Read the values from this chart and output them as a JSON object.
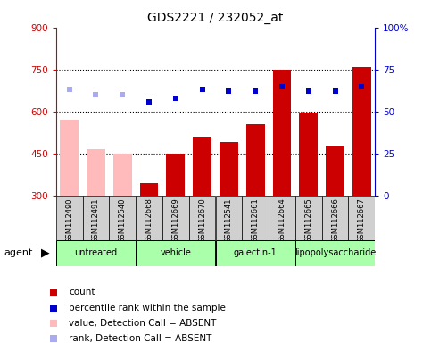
{
  "title": "GDS2221 / 232052_at",
  "samples": [
    "GSM112490",
    "GSM112491",
    "GSM112540",
    "GSM112668",
    "GSM112669",
    "GSM112670",
    "GSM112541",
    "GSM112661",
    "GSM112664",
    "GSM112665",
    "GSM112666",
    "GSM112667"
  ],
  "bar_values": [
    570,
    465,
    450,
    345,
    450,
    510,
    490,
    555,
    750,
    595,
    475,
    760
  ],
  "bar_absent": [
    true,
    true,
    true,
    false,
    false,
    false,
    false,
    false,
    false,
    false,
    false,
    false
  ],
  "rank_values": [
    63,
    60,
    60,
    56,
    58,
    63,
    62,
    62,
    65,
    62,
    62,
    65
  ],
  "rank_absent": [
    true,
    true,
    true,
    false,
    false,
    false,
    false,
    false,
    false,
    false,
    false,
    false
  ],
  "ylim_left": [
    300,
    900
  ],
  "ylim_right": [
    0,
    100
  ],
  "yticks_left": [
    300,
    450,
    600,
    750,
    900
  ],
  "yticks_right": [
    0,
    25,
    50,
    75,
    100
  ],
  "agent_groups": [
    {
      "label": "untreated",
      "start": 0,
      "end": 3
    },
    {
      "label": "vehicle",
      "start": 3,
      "end": 6
    },
    {
      "label": "galectin-1",
      "start": 6,
      "end": 9
    },
    {
      "label": "lipopolysaccharide",
      "start": 9,
      "end": 12
    }
  ],
  "agent_color": "#aaffaa",
  "bg_color": "#ffffff",
  "plot_bg_color": "#ffffff",
  "sample_box_color": "#d0d0d0",
  "ylabel_left_color": "#cc0000",
  "ylabel_right_color": "#0000cc",
  "absent_rank_color": "#aaaaee",
  "present_rank_color": "#0000cc",
  "absent_bar_color": "#ffbbbb",
  "present_bar_color": "#cc0000",
  "grid_color": "#000000"
}
